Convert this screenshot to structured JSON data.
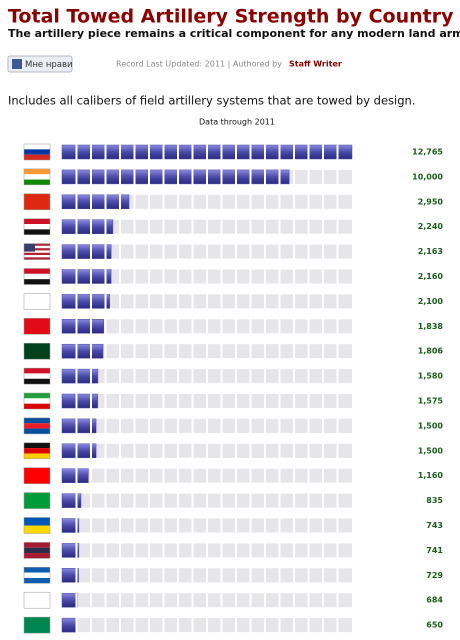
{
  "chart_data": {
    "type": "bar",
    "title": "Total Towed Artillery Strength by Country",
    "subtitle": "The artillery piece remains a critical component for any modern land army.",
    "like_button": "Мне нрави",
    "record_text": "Record Last Updated: 2011 | Authored by",
    "author": "Staff Writer",
    "description": "Includes all calibers of field artillery systems that are towed by design.",
    "note": "Data through 2011",
    "values": [
      12765,
      10000,
      2950,
      2240,
      2163,
      2160,
      2100,
      1838,
      1806,
      1580,
      1575,
      1500,
      1500,
      1160,
      835,
      743,
      741,
      729,
      684,
      650
    ],
    "value_labels": [
      "12,765",
      "10,000",
      "2,950",
      "2,240",
      "2,163",
      "2,160",
      "2,100",
      "1,838",
      "1,806",
      "1,580",
      "1,575",
      "1,500",
      "1,500",
      "1,160",
      "835",
      "743",
      "741",
      "729",
      "684",
      "650"
    ],
    "color": "#4a4aa8"
  }
}
